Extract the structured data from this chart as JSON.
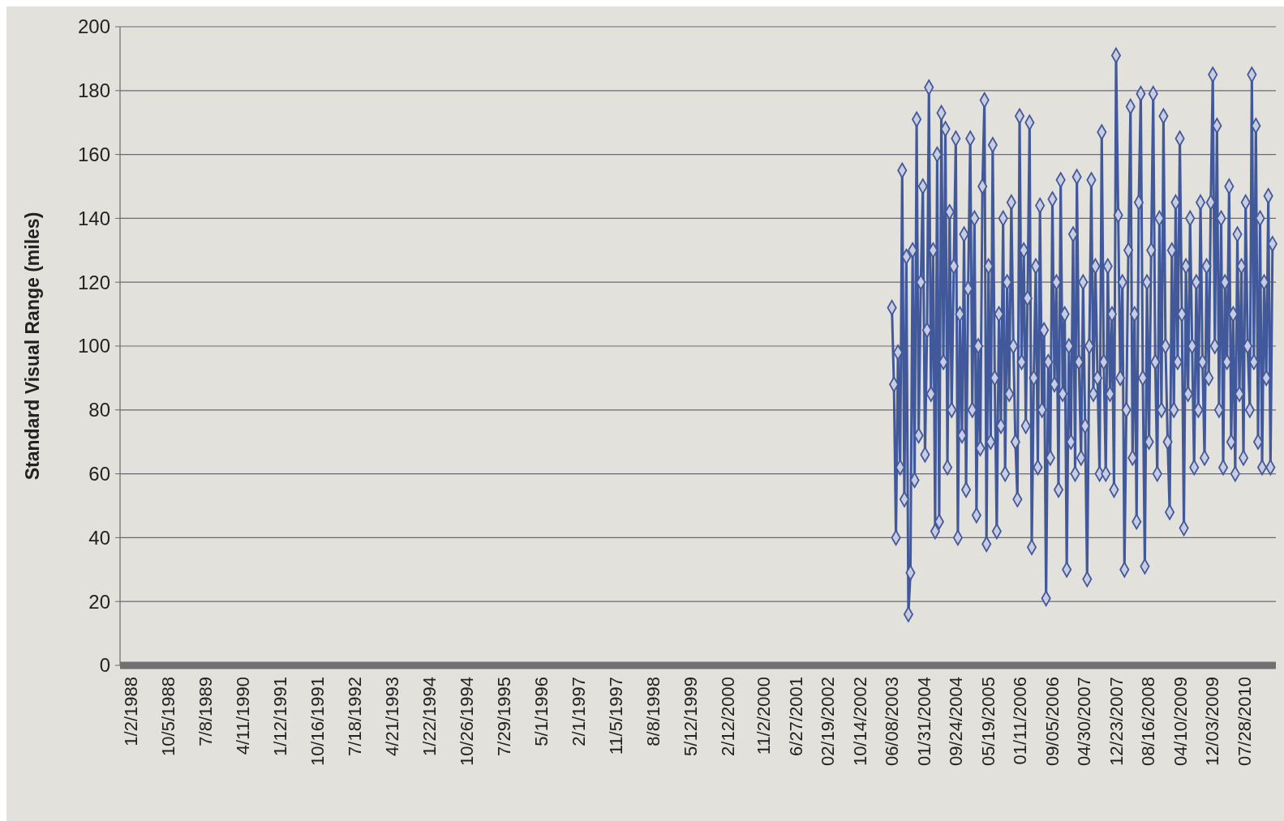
{
  "chart_data": {
    "type": "line",
    "ylabel": "Standard Visual Range (miles)",
    "ylim": [
      0,
      200
    ],
    "yticks": [
      0,
      20,
      40,
      60,
      80,
      100,
      120,
      140,
      160,
      180,
      200
    ],
    "xlim": [
      "1987-10-17",
      "2011-03-20"
    ],
    "xticks": [
      {
        "value": "1988-01-02",
        "label": "1/2/1988"
      },
      {
        "value": "1988-10-05",
        "label": "10/5/1988"
      },
      {
        "value": "1989-07-08",
        "label": "7/8/1989"
      },
      {
        "value": "1990-04-11",
        "label": "4/11/1990"
      },
      {
        "value": "1991-01-12",
        "label": "1/12/1991"
      },
      {
        "value": "1991-10-16",
        "label": "10/16/1991"
      },
      {
        "value": "1992-07-18",
        "label": "7/18/1992"
      },
      {
        "value": "1993-04-21",
        "label": "4/21/1993"
      },
      {
        "value": "1994-01-22",
        "label": "1/22/1994"
      },
      {
        "value": "1994-10-26",
        "label": "10/26/1994"
      },
      {
        "value": "1995-07-29",
        "label": "7/29/1995"
      },
      {
        "value": "1996-05-01",
        "label": "5/1/1996"
      },
      {
        "value": "1997-02-01",
        "label": "2/1/1997"
      },
      {
        "value": "1997-11-05",
        "label": "11/5/1997"
      },
      {
        "value": "1998-08-08",
        "label": "8/8/1998"
      },
      {
        "value": "1999-05-12",
        "label": "5/12/1999"
      },
      {
        "value": "2000-02-12",
        "label": "2/12/2000"
      },
      {
        "value": "2000-11-02",
        "label": "11/2/2000"
      },
      {
        "value": "2001-06-27",
        "label": "6/27/2001"
      },
      {
        "value": "2002-02-19",
        "label": "02/19/2002"
      },
      {
        "value": "2002-10-14",
        "label": "10/14/2002"
      },
      {
        "value": "2003-06-08",
        "label": "06/08/2003"
      },
      {
        "value": "2004-01-31",
        "label": "01/31/2004"
      },
      {
        "value": "2004-09-24",
        "label": "09/24/2004"
      },
      {
        "value": "2005-05-19",
        "label": "05/19/2005"
      },
      {
        "value": "2006-01-11",
        "label": "01/11/2006"
      },
      {
        "value": "2006-09-05",
        "label": "09/05/2006"
      },
      {
        "value": "2007-04-30",
        "label": "04/30/2007"
      },
      {
        "value": "2007-12-23",
        "label": "12/23/2007"
      },
      {
        "value": "2008-08-16",
        "label": "08/16/2008"
      },
      {
        "value": "2009-04-10",
        "label": "04/10/2009"
      },
      {
        "value": "2009-12-03",
        "label": "12/03/2009"
      },
      {
        "value": "2010-07-28",
        "label": "07/28/2010"
      }
    ],
    "grid": "y",
    "marker": "diamond",
    "line_style": "solid",
    "series": [
      {
        "color": "#41599b",
        "x": [
          "2003-06-08",
          "2003-06-23",
          "2003-07-08",
          "2003-07-23",
          "2003-08-08",
          "2003-08-23",
          "2003-09-08",
          "2003-09-23",
          "2003-10-08",
          "2003-10-23",
          "2003-11-08",
          "2003-11-23",
          "2003-12-08",
          "2003-12-23",
          "2004-01-08",
          "2004-01-23",
          "2004-02-08",
          "2004-02-23",
          "2004-03-08",
          "2004-03-23",
          "2004-04-08",
          "2004-04-23",
          "2004-05-08",
          "2004-05-23",
          "2004-06-08",
          "2004-06-23",
          "2004-07-08",
          "2004-07-23",
          "2004-08-08",
          "2004-08-23",
          "2004-09-08",
          "2004-09-23",
          "2004-10-08",
          "2004-10-23",
          "2004-11-08",
          "2004-11-23",
          "2004-12-08",
          "2004-12-23",
          "2005-01-08",
          "2005-01-23",
          "2005-02-08",
          "2005-02-23",
          "2005-03-08",
          "2005-03-23",
          "2005-04-08",
          "2005-04-23",
          "2005-05-08",
          "2005-05-23",
          "2005-06-08",
          "2005-06-23",
          "2005-07-08",
          "2005-07-23",
          "2005-08-08",
          "2005-08-23",
          "2005-09-08",
          "2005-09-23",
          "2005-10-08",
          "2005-10-23",
          "2005-11-08",
          "2005-11-23",
          "2005-12-08",
          "2005-12-23",
          "2006-01-08",
          "2006-01-23",
          "2006-02-08",
          "2006-02-23",
          "2006-03-08",
          "2006-03-23",
          "2006-04-08",
          "2006-04-23",
          "2006-05-08",
          "2006-05-23",
          "2006-06-08",
          "2006-06-23",
          "2006-07-08",
          "2006-07-23",
          "2006-08-08",
          "2006-08-23",
          "2006-09-08",
          "2006-09-23",
          "2006-10-08",
          "2006-10-23",
          "2006-11-08",
          "2006-11-23",
          "2006-12-08",
          "2006-12-23",
          "2007-01-08",
          "2007-01-23",
          "2007-02-08",
          "2007-02-23",
          "2007-03-08",
          "2007-03-23",
          "2007-04-08",
          "2007-04-23",
          "2007-05-08",
          "2007-05-23",
          "2007-06-08",
          "2007-06-23",
          "2007-07-08",
          "2007-07-23",
          "2007-08-08",
          "2007-08-23",
          "2007-09-08",
          "2007-09-23",
          "2007-10-08",
          "2007-10-23",
          "2007-11-08",
          "2007-11-23",
          "2007-12-08",
          "2007-12-23",
          "2008-01-08",
          "2008-01-23",
          "2008-02-08",
          "2008-02-23",
          "2008-03-08",
          "2008-03-23",
          "2008-04-08",
          "2008-04-23",
          "2008-05-08",
          "2008-05-23",
          "2008-06-08",
          "2008-06-23",
          "2008-07-08",
          "2008-07-23",
          "2008-08-08",
          "2008-08-23",
          "2008-09-08",
          "2008-09-23",
          "2008-10-08",
          "2008-10-23",
          "2008-11-08",
          "2008-11-23",
          "2008-12-08",
          "2008-12-23",
          "2009-01-08",
          "2009-01-23",
          "2009-02-08",
          "2009-02-23",
          "2009-03-08",
          "2009-03-23",
          "2009-04-08",
          "2009-04-23",
          "2009-05-08",
          "2009-05-23",
          "2009-06-08",
          "2009-06-23",
          "2009-07-08",
          "2009-07-23",
          "2009-08-08",
          "2009-08-23",
          "2009-09-08",
          "2009-09-23",
          "2009-10-08",
          "2009-10-23",
          "2009-11-08",
          "2009-11-23",
          "2009-12-08",
          "2009-12-23",
          "2010-01-08",
          "2010-01-23",
          "2010-02-08",
          "2010-02-23",
          "2010-03-08",
          "2010-03-23",
          "2010-04-08",
          "2010-04-23",
          "2010-05-08",
          "2010-05-23",
          "2010-06-08",
          "2010-06-23",
          "2010-07-08",
          "2010-07-23",
          "2010-08-08",
          "2010-08-23",
          "2010-09-08",
          "2010-09-23",
          "2010-10-08",
          "2010-10-23",
          "2010-11-08",
          "2010-11-23",
          "2010-12-08",
          "2010-12-23",
          "2011-01-08",
          "2011-01-23",
          "2011-02-08",
          "2011-02-23"
        ],
        "values": [
          112,
          88,
          40,
          98,
          62,
          155,
          52,
          128,
          16,
          29,
          130,
          58,
          171,
          72,
          120,
          150,
          66,
          105,
          181,
          85,
          130,
          42,
          160,
          45,
          173,
          95,
          168,
          62,
          142,
          80,
          125,
          165,
          40,
          110,
          72,
          135,
          55,
          118,
          165,
          80,
          140,
          47,
          100,
          68,
          150,
          177,
          38,
          125,
          70,
          163,
          90,
          42,
          110,
          75,
          140,
          60,
          120,
          85,
          145,
          100,
          70,
          52,
          172,
          95,
          130,
          75,
          115,
          170,
          37,
          90,
          125,
          62,
          144,
          80,
          105,
          21,
          95,
          65,
          146,
          88,
          120,
          55,
          152,
          85,
          110,
          30,
          100,
          70,
          135,
          60,
          153,
          95,
          65,
          120,
          75,
          27,
          100,
          152,
          85,
          125,
          90,
          60,
          167,
          95,
          60,
          125,
          85,
          110,
          55,
          191,
          141,
          90,
          120,
          30,
          80,
          130,
          175,
          65,
          110,
          45,
          145,
          179,
          90,
          31,
          120,
          70,
          130,
          179,
          95,
          60,
          140,
          80,
          172,
          100,
          70,
          48,
          130,
          80,
          145,
          95,
          165,
          110,
          43,
          125,
          85,
          140,
          100,
          62,
          120,
          80,
          145,
          95,
          65,
          125,
          90,
          145,
          185,
          100,
          169,
          80,
          140,
          62,
          120,
          95,
          150,
          70,
          110,
          60,
          135,
          85,
          125,
          65,
          145,
          100,
          80,
          185,
          95,
          169,
          70,
          140,
          62,
          120,
          90,
          147,
          62,
          132
        ]
      }
    ]
  }
}
